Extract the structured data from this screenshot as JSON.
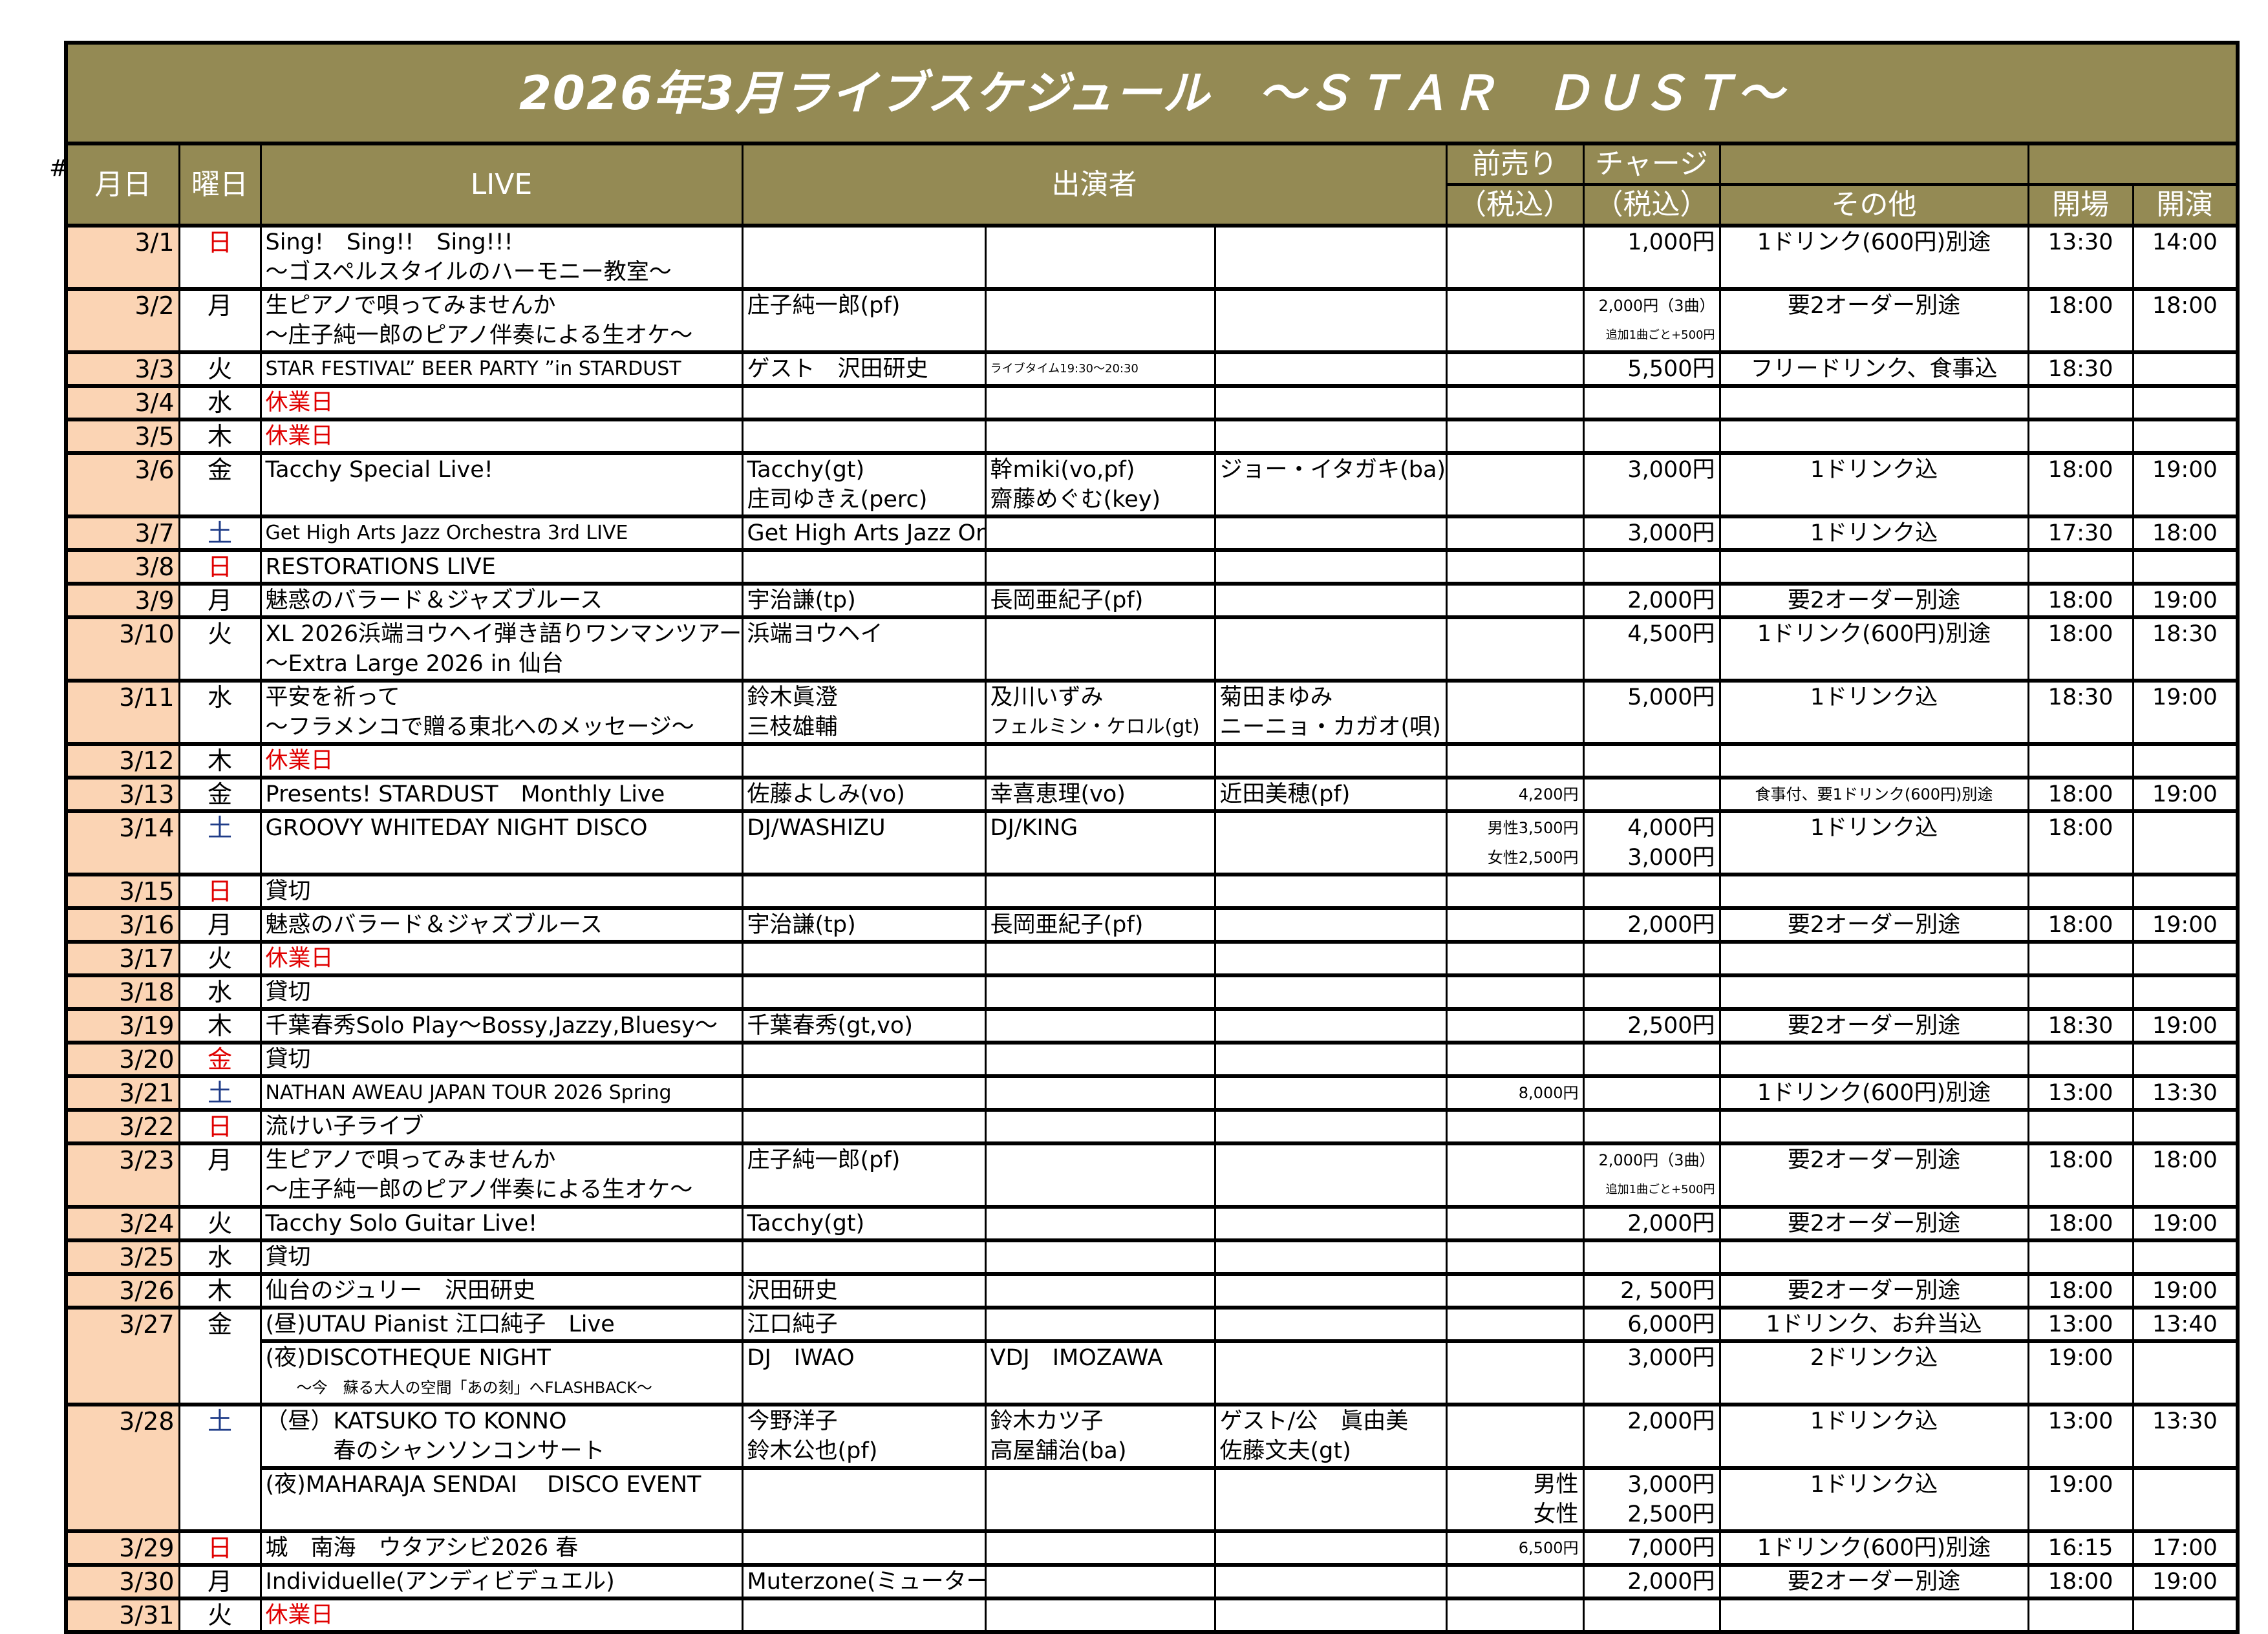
{
  "hash_mark": "#",
  "title": "2026年3月ライブスケジュール　～ＳＴＡＲ　ＤＵＳＴ～",
  "header": {
    "date": "月日",
    "dow": "曜日",
    "live": "LIVE",
    "performers": "出演者",
    "advance": "前売り",
    "advance_tax": "（税込）",
    "charge": "チャージ",
    "charge_tax": "（税込）",
    "other": "その他",
    "open": "開場",
    "start": "開演"
  },
  "colors": {
    "header_bg": "#948a54",
    "date_bg": "#fbd4b4",
    "sunday": "#e00000",
    "saturday": "#1f3c88",
    "closed": "#e00000"
  },
  "events": [
    {
      "date": "3/1",
      "dow": "日",
      "dow_color": "red",
      "lines": [
        {
          "cells": [
            "Sing!　Sing!!　Sing!!!",
            "",
            "",
            "",
            "",
            "1,000円",
            "1ドリンク(600円)別途",
            "13:30",
            "14:00"
          ]
        },
        {
          "cells": [
            "～ゴスペルスタイルのハーモニー教室～",
            "",
            "",
            "",
            "",
            "",
            "",
            "",
            ""
          ]
        }
      ]
    },
    {
      "date": "3/2",
      "dow": "月",
      "lines": [
        {
          "cells": [
            "生ピアノで唄ってみませんか",
            "庄子純一郎(pf)",
            "",
            "",
            "",
            "2,000円（3曲）",
            "要2オーダー別途",
            "18:00",
            "18:00"
          ]
        },
        {
          "cells": [
            "～庄子純一郎のピアノ伴奏による生オケ～",
            "",
            "",
            "",
            "",
            "追加1曲ごと+500円",
            "",
            "",
            ""
          ]
        }
      ]
    },
    {
      "date": "3/3",
      "dow": "火",
      "lines": [
        {
          "cells": [
            "STAR FESTIVAL” BEER PARTY ”in STARDUST",
            "ゲスト　沢田研史",
            "ライブタイム19:30～20:30",
            "",
            "",
            "5,500円",
            "フリードリンク、食事込",
            "18:30",
            ""
          ]
        }
      ]
    },
    {
      "date": "3/4",
      "dow": "水",
      "lines": [
        {
          "cells": [
            "休業日",
            "",
            "",
            "",
            "",
            "",
            "",
            "",
            ""
          ],
          "closed": true
        }
      ]
    },
    {
      "date": "3/5",
      "dow": "木",
      "lines": [
        {
          "cells": [
            "休業日",
            "",
            "",
            "",
            "",
            "",
            "",
            "",
            ""
          ],
          "closed": true
        }
      ]
    },
    {
      "date": "3/6",
      "dow": "金",
      "lines": [
        {
          "cells": [
            "Tacchy Special Live!",
            "Tacchy(gt)",
            "幹miki(vo,pf)",
            "ジョー・イタガキ(ba)",
            "",
            "3,000円",
            "1ドリンク込",
            "18:00",
            "19:00"
          ]
        },
        {
          "cells": [
            "",
            "庄司ゆきえ(perc)",
            "齋藤めぐむ(key)",
            "",
            "",
            "",
            "",
            "",
            ""
          ]
        }
      ]
    },
    {
      "date": "3/7",
      "dow": "土",
      "dow_color": "blue",
      "lines": [
        {
          "cells": [
            "Get High Arts Jazz Orchestra 3rd LIVE",
            "Get High Arts Jazz Orchestra",
            "",
            "",
            "",
            "3,000円",
            "1ドリンク込",
            "17:30",
            "18:00"
          ]
        }
      ]
    },
    {
      "date": "3/8",
      "dow": "日",
      "dow_color": "red",
      "lines": [
        {
          "cells": [
            "RESTORATIONS LIVE",
            "",
            "",
            "",
            "",
            "",
            "",
            "",
            ""
          ]
        }
      ]
    },
    {
      "date": "3/9",
      "dow": "月",
      "lines": [
        {
          "cells": [
            "魅惑のバラード＆ジャズブルース",
            "宇治謙(tp)",
            "長岡亜紀子(pf)",
            "",
            "",
            "2,000円",
            "要2オーダー別途",
            "18:00",
            "19:00"
          ]
        }
      ]
    },
    {
      "date": "3/10",
      "dow": "火",
      "lines": [
        {
          "cells": [
            "XL 2026浜端ヨウヘイ弾き語りワンマンツアー",
            "浜端ヨウヘイ",
            "",
            "",
            "",
            "4,500円",
            "1ドリンク(600円)別途",
            "18:00",
            "18:30"
          ]
        },
        {
          "cells": [
            "～Extra Large 2026 in 仙台",
            "",
            "",
            "",
            "",
            "",
            "",
            "",
            ""
          ]
        }
      ]
    },
    {
      "date": "3/11",
      "dow": "水",
      "lines": [
        {
          "cells": [
            "平安を祈って",
            "鈴木眞澄",
            "及川いずみ",
            "菊田まゆみ",
            "",
            "5,000円",
            "1ドリンク込",
            "18:30",
            "19:00"
          ]
        },
        {
          "cells": [
            "～フラメンコで贈る東北へのメッセージ～",
            "三枝雄輔",
            "フェルミン・ケロル(gt)",
            "ニーニョ・カガオ(唄)",
            "",
            "",
            "",
            "",
            ""
          ]
        }
      ]
    },
    {
      "date": "3/12",
      "dow": "木",
      "lines": [
        {
          "cells": [
            "休業日",
            "",
            "",
            "",
            "",
            "",
            "",
            "",
            ""
          ],
          "closed": true
        }
      ]
    },
    {
      "date": "3/13",
      "dow": "金",
      "lines": [
        {
          "cells": [
            "Presents! STARDUST　Monthly Live",
            "佐藤よしみ(vo)",
            "幸喜恵理(vo)",
            "近田美穂(pf)",
            "4,200円",
            "",
            "食事付、要1ドリンク(600円)別途",
            "18:00",
            "19:00"
          ]
        }
      ]
    },
    {
      "date": "3/14",
      "dow": "土",
      "dow_color": "blue",
      "lines": [
        {
          "cells": [
            "GROOVY WHITEDAY NIGHT DISCO",
            "DJ/WASHIZU",
            "DJ/KING",
            "",
            "男性3,500円",
            "4,000円",
            "1ドリンク込",
            "18:00",
            ""
          ]
        },
        {
          "cells": [
            "",
            "",
            "",
            "",
            "女性2,500円",
            "3,000円",
            "",
            "",
            ""
          ]
        }
      ]
    },
    {
      "date": "3/15",
      "dow": "日",
      "dow_color": "red",
      "lines": [
        {
          "cells": [
            "貸切",
            "",
            "",
            "",
            "",
            "",
            "",
            "",
            ""
          ]
        }
      ]
    },
    {
      "date": "3/16",
      "dow": "月",
      "lines": [
        {
          "cells": [
            "魅惑のバラード＆ジャズブルース",
            "宇治謙(tp)",
            "長岡亜紀子(pf)",
            "",
            "",
            "2,000円",
            "要2オーダー別途",
            "18:00",
            "19:00"
          ]
        }
      ]
    },
    {
      "date": "3/17",
      "dow": "火",
      "lines": [
        {
          "cells": [
            "休業日",
            "",
            "",
            "",
            "",
            "",
            "",
            "",
            ""
          ],
          "closed": true
        }
      ]
    },
    {
      "date": "3/18",
      "dow": "水",
      "lines": [
        {
          "cells": [
            "貸切",
            "",
            "",
            "",
            "",
            "",
            "",
            "",
            ""
          ]
        }
      ]
    },
    {
      "date": "3/19",
      "dow": "木",
      "lines": [
        {
          "cells": [
            "千葉春秀Solo Play～Bossy,Jazzy,Bluesy～",
            "千葉春秀(gt,vo)",
            "",
            "",
            "",
            "2,500円",
            "要2オーダー別途",
            "18:30",
            "19:00"
          ]
        }
      ]
    },
    {
      "date": "3/20",
      "dow": "金",
      "dow_color": "red",
      "lines": [
        {
          "cells": [
            "貸切",
            "",
            "",
            "",
            "",
            "",
            "",
            "",
            ""
          ]
        }
      ]
    },
    {
      "date": "3/21",
      "dow": "土",
      "dow_color": "blue",
      "lines": [
        {
          "cells": [
            "NATHAN AWEAU JAPAN TOUR 2026 Spring",
            "",
            "",
            "",
            "8,000円",
            "",
            "1ドリンク(600円)別途",
            "13:00",
            "13:30"
          ]
        }
      ]
    },
    {
      "date": "3/22",
      "dow": "日",
      "dow_color": "red",
      "lines": [
        {
          "cells": [
            "流けい子ライブ",
            "",
            "",
            "",
            "",
            "",
            "",
            "",
            ""
          ]
        }
      ]
    },
    {
      "date": "3/23",
      "dow": "月",
      "lines": [
        {
          "cells": [
            "生ピアノで唄ってみませんか",
            "庄子純一郎(pf)",
            "",
            "",
            "",
            "2,000円（3曲）",
            "要2オーダー別途",
            "18:00",
            "18:00"
          ]
        },
        {
          "cells": [
            "～庄子純一郎のピアノ伴奏による生オケ～",
            "",
            "",
            "",
            "",
            "追加1曲ごと+500円",
            "",
            "",
            ""
          ]
        }
      ]
    },
    {
      "date": "3/24",
      "dow": "火",
      "lines": [
        {
          "cells": [
            "Tacchy Solo Guitar Live!",
            "Tacchy(gt)",
            "",
            "",
            "",
            "2,000円",
            "要2オーダー別途",
            "18:00",
            "19:00"
          ]
        }
      ]
    },
    {
      "date": "3/25",
      "dow": "水",
      "lines": [
        {
          "cells": [
            "貸切",
            "",
            "",
            "",
            "",
            "",
            "",
            "",
            ""
          ]
        }
      ]
    },
    {
      "date": "3/26",
      "dow": "木",
      "lines": [
        {
          "cells": [
            "仙台のジュリー　沢田研史",
            "沢田研史",
            "",
            "",
            "",
            "2, 500円",
            "要2オーダー別途",
            "18:00",
            "19:00"
          ]
        }
      ]
    },
    {
      "date": "3/27",
      "dow": "金",
      "lines": [
        {
          "cells": [
            "(昼)UTAU Pianist 江口純子　Live",
            "江口純子",
            "",
            "",
            "",
            "6,000円",
            "1ドリンク、お弁当込",
            "13:00",
            "13:40"
          ]
        },
        {
          "cells": [
            "(夜)DISCOTHEQUE NIGHT",
            "DJ　IWAO",
            "VDJ　IMOZAWA",
            "",
            "",
            "3,000円",
            "2ドリンク込",
            "19:00",
            ""
          ],
          "sep": true
        },
        {
          "cells": [
            "　　～今　蘇る大人の空間「あの刻」へFLASHBACK～",
            "",
            "",
            "",
            "",
            "",
            "",
            "",
            ""
          ]
        }
      ]
    },
    {
      "date": "3/28",
      "dow": "土",
      "dow_color": "blue",
      "lines": [
        {
          "cells": [
            "（昼）KATSUKO TO KONNO",
            "今野洋子",
            "鈴木カツ子",
            "ゲスト/公　眞由美",
            "",
            "2,000円",
            "1ドリンク込",
            "13:00",
            "13:30"
          ]
        },
        {
          "cells": [
            "　　　春のシャンソンコンサート",
            "鈴木公也(pf)",
            "高屋舗治(ba)",
            "佐藤文夫(gt)",
            "",
            "",
            "",
            "",
            ""
          ]
        },
        {
          "cells": [
            "(夜)MAHARAJA SENDAI　 DISCO EVENT",
            "",
            "",
            "",
            "男性",
            "3,000円",
            "1ドリンク込",
            "19:00",
            ""
          ],
          "sep": true
        },
        {
          "cells": [
            "",
            "",
            "",
            "",
            "女性",
            "2,500円",
            "",
            "",
            ""
          ]
        }
      ]
    },
    {
      "date": "3/29",
      "dow": "日",
      "dow_color": "red",
      "lines": [
        {
          "cells": [
            "城　南海　ウタアシビ2026 春",
            "",
            "",
            "",
            "6,500円",
            "7,000円",
            "1ドリンク(600円)別途",
            "16:15",
            "17:00"
          ]
        }
      ]
    },
    {
      "date": "3/30",
      "dow": "月",
      "lines": [
        {
          "cells": [
            "Individuelle(アンディビデュエル)",
            "Muterzone(ミューターゾーン)",
            "",
            "",
            "",
            "2,000円",
            "要2オーダー別途",
            "18:00",
            "19:00"
          ]
        }
      ]
    },
    {
      "date": "3/31",
      "dow": "火",
      "lines": [
        {
          "cells": [
            "休業日",
            "",
            "",
            "",
            "",
            "",
            "",
            "",
            ""
          ],
          "closed": true
        }
      ]
    }
  ]
}
